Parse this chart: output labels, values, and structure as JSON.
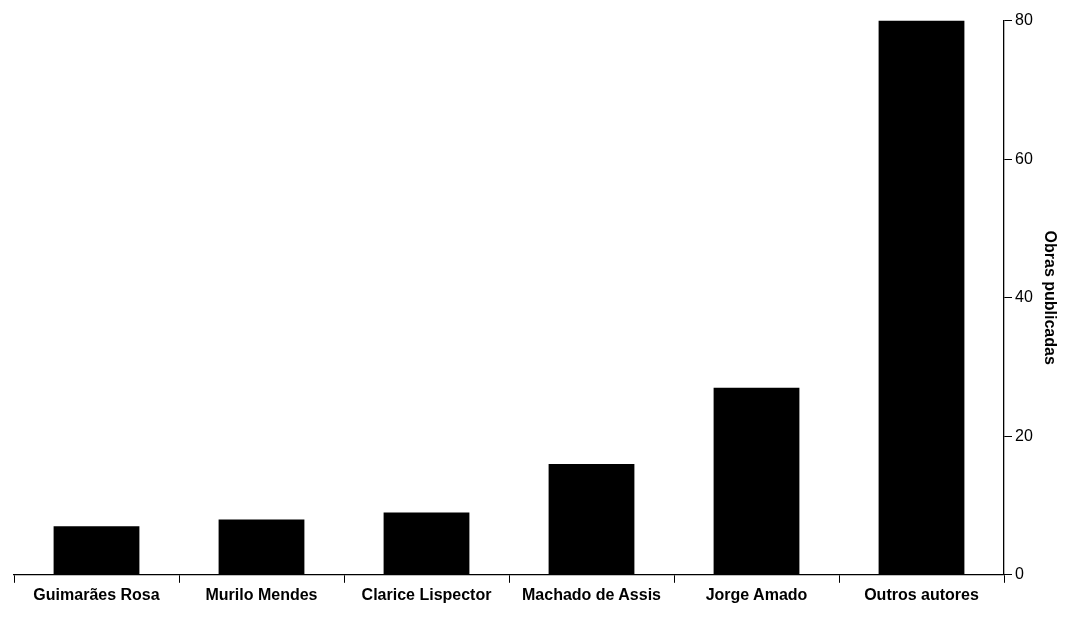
{
  "chart_data": {
    "type": "bar",
    "ylabel": "Obras publicadas",
    "categories": [
      "Guimarães Rosa",
      "Murilo Mendes",
      "Clarice Lispector",
      "Machado de Assis",
      "Jorge Amado",
      "Outros autores"
    ],
    "values": [
      7,
      8,
      9,
      16,
      27,
      80
    ],
    "color": "#000000",
    "ylim": [
      0,
      80
    ],
    "yticks": [
      0,
      20,
      40,
      60,
      80
    ],
    "grid": false,
    "legend": false
  }
}
